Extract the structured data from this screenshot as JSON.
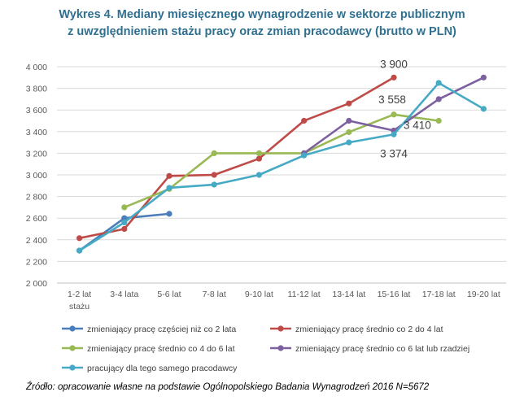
{
  "chart_data": {
    "type": "line",
    "title_line1": "Wykres 4. Mediany miesięcznego wynagrodzenie w sektorze publicznym",
    "title_line2": "z uwzględnieniem stażu pracy oraz zmian pracodawcy (brutto w PLN)",
    "categories": [
      "1-2 lat",
      "3-4 lata",
      "5-6 lat",
      "7-8 lat",
      "9-10 lat",
      "11-12 lat",
      "13-14 lat",
      "15-16 lat",
      "17-18 lat",
      "19-20 lat"
    ],
    "category_second_line": [
      "stażu",
      "",
      "",
      "",
      "",
      "",
      "",
      "",
      "",
      ""
    ],
    "ylim": [
      2000,
      4000
    ],
    "yticks": [
      "2 000",
      "2 200",
      "2 400",
      "2 600",
      "2 800",
      "3 000",
      "3 200",
      "3 400",
      "3 600",
      "3 800",
      "4 000"
    ],
    "ytick_values": [
      2000,
      2200,
      2400,
      2600,
      2800,
      3000,
      3200,
      3400,
      3600,
      3800,
      4000
    ],
    "grid": true,
    "legend_position": "bottom",
    "series": [
      {
        "name": "zmieniający pracę częściej niż co 2 lata",
        "color": "#4a7ebb",
        "values": [
          2300,
          2600,
          2640,
          null,
          null,
          null,
          null,
          null,
          null,
          null
        ]
      },
      {
        "name": "zmieniający pracę średnio co 2 do 4 lat",
        "color": "#be4b48",
        "values": [
          2415,
          2500,
          2990,
          3000,
          3150,
          3500,
          3660,
          3900,
          null,
          null
        ]
      },
      {
        "name": "zmieniający pracę średnio co 4 do 6 lat",
        "color": "#98b954",
        "values": [
          null,
          2700,
          2870,
          3200,
          3200,
          3200,
          3395,
          3558,
          3500,
          null
        ]
      },
      {
        "name": "zmieniający pracę średnio co 6 lat lub rzadziej",
        "color": "#7d60a0",
        "values": [
          null,
          null,
          null,
          null,
          null,
          3200,
          3500,
          3410,
          3700,
          3900
        ]
      },
      {
        "name": "pracujący dla tego samego pracodawcy",
        "color": "#46aac5",
        "values": [
          2300,
          2560,
          2880,
          2910,
          3000,
          3180,
          3300,
          3374,
          3850,
          3610
        ]
      }
    ],
    "annotations": [
      {
        "text": "3 900",
        "category": "15-16 lat",
        "value": 3900,
        "anchor": "above"
      },
      {
        "text": "3 558",
        "category": "15-16 lat",
        "value": 3558,
        "anchor": "above-left"
      },
      {
        "text": "3 410",
        "category": "15-16 lat",
        "value": 3410,
        "anchor": "right"
      },
      {
        "text": "3 374",
        "category": "15-16 lat",
        "value": 3374,
        "anchor": "below"
      }
    ]
  },
  "source": "Źródło: opracowanie własne na podstawie Ogólnopolskiego Badania Wynagrodzeń 2016  N=5672"
}
